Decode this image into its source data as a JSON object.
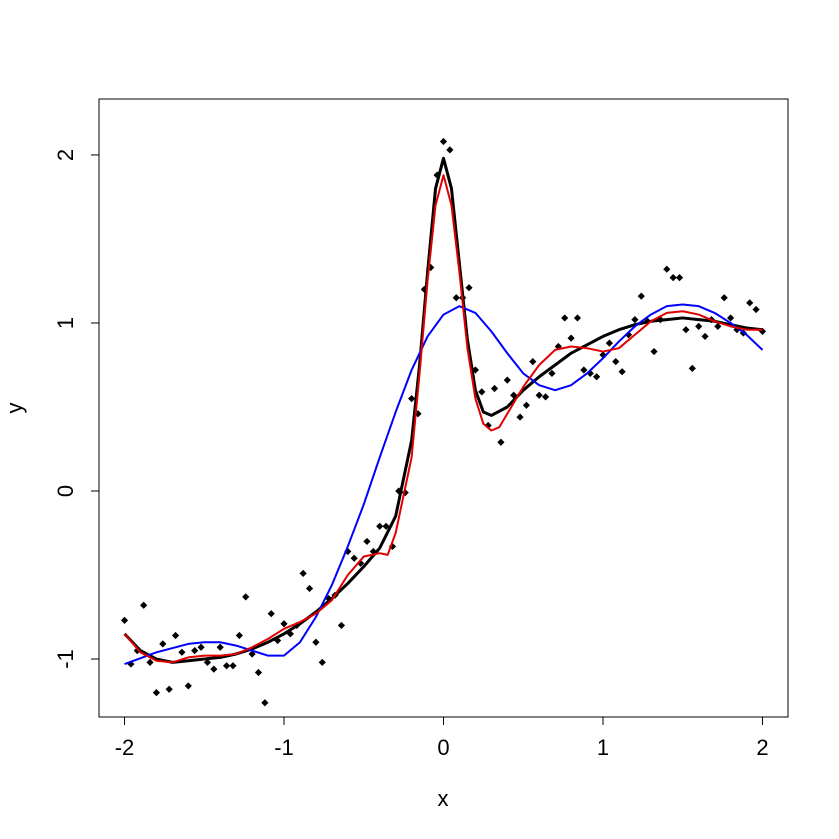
{
  "chart_data": {
    "type": "scatter",
    "xlabel": "x",
    "ylabel": "y",
    "xlim": [
      -2.16,
      2.16
    ],
    "ylim": [
      -1.345,
      2.333
    ],
    "xticks": [
      -2,
      -1,
      0,
      1,
      2
    ],
    "yticks": [
      -1,
      0,
      1,
      2
    ],
    "series": [
      {
        "style": "points",
        "color": "#000000",
        "x": [
          -2.0,
          -1.96,
          -1.92,
          -1.88,
          -1.84,
          -1.8,
          -1.76,
          -1.72,
          -1.68,
          -1.64,
          -1.6,
          -1.56,
          -1.52,
          -1.48,
          -1.44,
          -1.4,
          -1.36,
          -1.32,
          -1.28,
          -1.24,
          -1.2,
          -1.16,
          -1.12,
          -1.08,
          -1.04,
          -1.0,
          -0.96,
          -0.92,
          -0.88,
          -0.84,
          -0.8,
          -0.76,
          -0.72,
          -0.68,
          -0.64,
          -0.6,
          -0.56,
          -0.52,
          -0.48,
          -0.44,
          -0.4,
          -0.36,
          -0.32,
          -0.28,
          -0.24,
          -0.2,
          -0.16,
          -0.12,
          -0.08,
          -0.04,
          0.0,
          0.04,
          0.08,
          0.12,
          0.16,
          0.2,
          0.24,
          0.28,
          0.32,
          0.36,
          0.4,
          0.44,
          0.48,
          0.52,
          0.56,
          0.6,
          0.64,
          0.68,
          0.72,
          0.76,
          0.8,
          0.84,
          0.88,
          0.92,
          0.96,
          1.0,
          1.04,
          1.08,
          1.12,
          1.16,
          1.2,
          1.24,
          1.28,
          1.32,
          1.36,
          1.4,
          1.44,
          1.48,
          1.52,
          1.56,
          1.6,
          1.64,
          1.68,
          1.72,
          1.76,
          1.8,
          1.84,
          1.88,
          1.92,
          1.96,
          2.0
        ],
        "values": [
          -0.77,
          -1.03,
          -0.95,
          -0.68,
          -1.02,
          -1.2,
          -0.91,
          -1.18,
          -0.86,
          -0.96,
          -1.16,
          -0.95,
          -0.93,
          -1.02,
          -1.06,
          -0.93,
          -1.04,
          -1.04,
          -0.86,
          -0.63,
          -0.97,
          -1.08,
          -1.26,
          -0.73,
          -0.89,
          -0.79,
          -0.85,
          -0.8,
          -0.49,
          -0.58,
          -0.9,
          -1.02,
          -0.64,
          -0.62,
          -0.8,
          -0.36,
          -0.4,
          -0.43,
          -0.3,
          -0.36,
          -0.21,
          -0.21,
          -0.33,
          0.0,
          -0.01,
          0.55,
          0.46,
          1.2,
          1.33,
          1.88,
          2.08,
          2.03,
          1.15,
          1.15,
          1.21,
          0.72,
          0.59,
          0.39,
          0.61,
          0.29,
          0.66,
          0.57,
          0.44,
          0.51,
          0.77,
          0.57,
          0.56,
          0.7,
          0.86,
          1.03,
          0.91,
          1.03,
          0.72,
          0.7,
          0.68,
          0.81,
          0.88,
          0.77,
          0.71,
          0.93,
          1.02,
          1.16,
          1.01,
          0.83,
          1.02,
          1.32,
          1.27,
          1.27,
          0.96,
          0.73,
          0.98,
          0.92,
          1.02,
          0.98,
          1.15,
          1.03,
          0.96,
          0.94,
          1.12,
          1.08,
          0.95
        ]
      },
      {
        "style": "line",
        "color": "#000000",
        "linewidth": 3,
        "x": [
          -2.0,
          -1.9,
          -1.8,
          -1.7,
          -1.6,
          -1.5,
          -1.4,
          -1.3,
          -1.2,
          -1.1,
          -1.0,
          -0.9,
          -0.8,
          -0.7,
          -0.6,
          -0.5,
          -0.4,
          -0.3,
          -0.2,
          -0.15,
          -0.1,
          -0.05,
          0.0,
          0.05,
          0.1,
          0.15,
          0.2,
          0.25,
          0.3,
          0.4,
          0.5,
          0.6,
          0.7,
          0.8,
          0.9,
          1.0,
          1.1,
          1.2,
          1.3,
          1.4,
          1.5,
          1.6,
          1.7,
          1.8,
          1.9,
          2.0
        ],
        "values": [
          -0.85,
          -0.95,
          -1.0,
          -1.02,
          -1.01,
          -1.0,
          -0.99,
          -0.97,
          -0.94,
          -0.9,
          -0.85,
          -0.79,
          -0.72,
          -0.64,
          -0.55,
          -0.45,
          -0.34,
          -0.15,
          0.3,
          0.75,
          1.3,
          1.8,
          1.98,
          1.8,
          1.35,
          0.9,
          0.6,
          0.47,
          0.45,
          0.5,
          0.6,
          0.68,
          0.75,
          0.82,
          0.87,
          0.92,
          0.96,
          0.99,
          1.01,
          1.02,
          1.03,
          1.02,
          1.01,
          0.99,
          0.97,
          0.96
        ]
      },
      {
        "style": "line",
        "color": "#0000ff",
        "linewidth": 2,
        "x": [
          -2.0,
          -1.8,
          -1.6,
          -1.5,
          -1.4,
          -1.3,
          -1.2,
          -1.1,
          -1.0,
          -0.9,
          -0.8,
          -0.7,
          -0.6,
          -0.5,
          -0.4,
          -0.3,
          -0.2,
          -0.1,
          0.0,
          0.1,
          0.2,
          0.3,
          0.4,
          0.5,
          0.6,
          0.7,
          0.8,
          0.9,
          1.0,
          1.1,
          1.2,
          1.3,
          1.4,
          1.5,
          1.6,
          1.7,
          1.8,
          1.9,
          2.0
        ],
        "values": [
          -1.03,
          -0.96,
          -0.91,
          -0.9,
          -0.9,
          -0.92,
          -0.95,
          -0.98,
          -0.98,
          -0.9,
          -0.75,
          -0.56,
          -0.33,
          -0.08,
          0.2,
          0.47,
          0.72,
          0.92,
          1.05,
          1.1,
          1.06,
          0.95,
          0.82,
          0.7,
          0.63,
          0.6,
          0.63,
          0.7,
          0.79,
          0.89,
          0.98,
          1.05,
          1.1,
          1.11,
          1.1,
          1.06,
          1.0,
          0.93,
          0.84
        ]
      },
      {
        "style": "line",
        "color": "#e00000",
        "linewidth": 2,
        "x": [
          -2.0,
          -1.9,
          -1.8,
          -1.7,
          -1.6,
          -1.5,
          -1.4,
          -1.3,
          -1.2,
          -1.1,
          -1.0,
          -0.9,
          -0.8,
          -0.7,
          -0.6,
          -0.5,
          -0.4,
          -0.35,
          -0.3,
          -0.2,
          -0.15,
          -0.1,
          -0.05,
          0.0,
          0.05,
          0.1,
          0.15,
          0.2,
          0.25,
          0.3,
          0.35,
          0.4,
          0.5,
          0.6,
          0.7,
          0.8,
          0.9,
          1.0,
          1.1,
          1.2,
          1.3,
          1.4,
          1.5,
          1.6,
          1.7,
          1.8,
          1.9,
          2.0
        ],
        "values": [
          -0.85,
          -0.96,
          -1.01,
          -1.02,
          -0.99,
          -0.98,
          -0.98,
          -0.97,
          -0.93,
          -0.88,
          -0.82,
          -0.78,
          -0.73,
          -0.65,
          -0.5,
          -0.39,
          -0.37,
          -0.38,
          -0.25,
          0.2,
          0.7,
          1.25,
          1.7,
          1.88,
          1.7,
          1.3,
          0.85,
          0.55,
          0.4,
          0.36,
          0.38,
          0.46,
          0.62,
          0.75,
          0.84,
          0.86,
          0.85,
          0.83,
          0.85,
          0.93,
          1.01,
          1.06,
          1.07,
          1.05,
          1.01,
          0.98,
          0.96,
          0.96
        ]
      }
    ]
  }
}
